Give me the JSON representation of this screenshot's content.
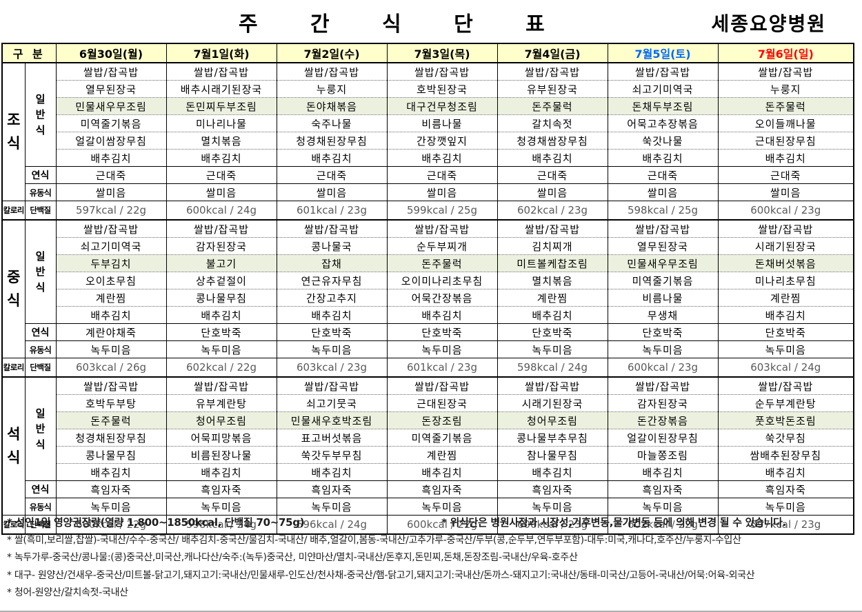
{
  "header": {
    "title": "주 간 식 단 표",
    "hospital": "세종요양병원"
  },
  "table": {
    "corner_label": "구  분",
    "highlight_row_index": 2,
    "colors": {
      "header_bg": "#FFFFCC",
      "highlight_bg": "#EBF1DE",
      "weekday_text": "#000000",
      "saturday_text": "#0066FF",
      "sunday_text": "#FF0000",
      "nutrition_text": "#595959"
    },
    "day_columns": [
      {
        "label": "6월30일(월)",
        "color": "#000000"
      },
      {
        "label": "7월1일(화)",
        "color": "#000000"
      },
      {
        "label": "7월2일(수)",
        "color": "#000000"
      },
      {
        "label": "7월3일(목)",
        "color": "#000000"
      },
      {
        "label": "7월4일(금)",
        "color": "#000000"
      },
      {
        "label": "7월5일(토)",
        "color": "#0066FF"
      },
      {
        "label": "7월6일(일)",
        "color": "#FF0000"
      }
    ],
    "row_labels": {
      "general": "일반식",
      "soft": "연식",
      "liquid": "유동식",
      "calorie": "칼로리",
      "protein": "단백질"
    },
    "sections": [
      {
        "name": "조식",
        "days": [
          {
            "menu": [
              "쌀밥/잡곡밥",
              "열무된장국",
              "민물새우무조림",
              "미역줄기볶음",
              "얼갈이쌈장무침",
              "배추김치"
            ],
            "soft": "근대죽",
            "liquid": "쌀미음",
            "nutrition": "597kcal / 22g"
          },
          {
            "menu": [
              "쌀밥/잡곡밥",
              "배추시래기된장국",
              "돈민찌두부조림",
              "미나리나물",
              "멸치볶음",
              "배추김치"
            ],
            "soft": "근대죽",
            "liquid": "쌀미음",
            "nutrition": "600kcal / 24g"
          },
          {
            "menu": [
              "쌀밥/잡곡밥",
              "누룽지",
              "돈야채볶음",
              "숙주나물",
              "청경채된장무침",
              "배추김치"
            ],
            "soft": "근대죽",
            "liquid": "쌀미음",
            "nutrition": "601kcal / 23g"
          },
          {
            "menu": [
              "쌀밥/잡곡밥",
              "호박된장국",
              "대구건무청조림",
              "비름나물",
              "간장깻잎지",
              "배추김치"
            ],
            "soft": "근대죽",
            "liquid": "쌀미음",
            "nutrition": "599kcal / 25g"
          },
          {
            "menu": [
              "쌀밥/잡곡밥",
              "유부된장국",
              "돈주물럭",
              "갈치속젓",
              "청경채쌈장무침",
              "배추김치"
            ],
            "soft": "근대죽",
            "liquid": "쌀미음",
            "nutrition": "602kcal / 23g"
          },
          {
            "menu": [
              "쌀밥/잡곡밥",
              "쇠고기미역국",
              "돈채두부조림",
              "어묵고추장볶음",
              "쑥갓나물",
              "배추김치"
            ],
            "soft": "근대죽",
            "liquid": "쌀미음",
            "nutrition": "598kcal / 25g"
          },
          {
            "menu": [
              "쌀밥/잡곡밥",
              "누룽지",
              "돈주물럭",
              "오이들깨나물",
              "근대된장무침",
              "배추김치"
            ],
            "soft": "근대죽",
            "liquid": "쌀미음",
            "nutrition": "600kcal / 23g"
          }
        ]
      },
      {
        "name": "중식",
        "days": [
          {
            "menu": [
              "쌀밥/잡곡밥",
              "쇠고기미역국",
              "두부김치",
              "오이초무침",
              "계란찜",
              "배추김치"
            ],
            "soft": "계란야채죽",
            "liquid": "녹두미음",
            "nutrition": "603kcal / 26g"
          },
          {
            "menu": [
              "쌀밥/잡곡밥",
              "감자된장국",
              "불고기",
              "상추겉절이",
              "콩나물무침",
              "배추김치"
            ],
            "soft": "단호박죽",
            "liquid": "녹두미음",
            "nutrition": "602kcal / 22g"
          },
          {
            "menu": [
              "쌀밥/잡곡밥",
              "콩나물국",
              "잡채",
              "연근유자무침",
              "간장고추지",
              "배추김치"
            ],
            "soft": "단호박죽",
            "liquid": "녹두미음",
            "nutrition": "603kcal / 23g"
          },
          {
            "menu": [
              "쌀밥/잡곡밥",
              "순두부찌개",
              "돈주물럭",
              "오이미나리초무침",
              "어묵간장볶음",
              "배추김치"
            ],
            "soft": "단호박죽",
            "liquid": "녹두미음",
            "nutrition": "601kcal / 23g"
          },
          {
            "menu": [
              "쌀밥/잡곡밥",
              "김치찌개",
              "미트볼케찹조림",
              "멸치볶음",
              "계란찜",
              "배추김치"
            ],
            "soft": "단호박죽",
            "liquid": "녹두미음",
            "nutrition": "598kcal / 24g"
          },
          {
            "menu": [
              "쌀밥/잡곡밥",
              "열무된장국",
              "민물새우무조림",
              "미역줄기볶음",
              "비름나물",
              "무생채"
            ],
            "soft": "단호박죽",
            "liquid": "녹두미음",
            "nutrition": "600kcal / 23g"
          },
          {
            "menu": [
              "쌀밥/잡곡밥",
              "시래기된장국",
              "돈채버섯볶음",
              "미나리초무침",
              "계란찜",
              "배추김치"
            ],
            "soft": "단호박죽",
            "liquid": "녹두미음",
            "nutrition": "603kcal / 24g"
          }
        ]
      },
      {
        "name": "석식",
        "days": [
          {
            "menu": [
              "쌀밥/잡곡밥",
              "호박두부탕",
              "돈주물럭",
              "청경채된장무침",
              "콩나물무침",
              "배추김치"
            ],
            "soft": "흑임자죽",
            "liquid": "녹두미음",
            "nutrition": "600kcal / 22g"
          },
          {
            "menu": [
              "쌀밥/잡곡밥",
              "유부계란탕",
              "청어무조림",
              "어묵피망볶음",
              "비름된장나물",
              "배추김치"
            ],
            "soft": "흑임자죽",
            "liquid": "녹두미음",
            "nutrition": "598kcal / 24g"
          },
          {
            "menu": [
              "쌀밥/잡곡밥",
              "쇠고기뭇국",
              "민물새우호박조림",
              "표고버섯볶음",
              "쑥갓두부무침",
              "배추김치"
            ],
            "soft": "흑임자죽",
            "liquid": "녹두미음",
            "nutrition": "596kcal / 24g"
          },
          {
            "menu": [
              "쌀밥/잡곡밥",
              "근대된장국",
              "돈장조림",
              "미역줄기볶음",
              "계란찜",
              "배추김치"
            ],
            "soft": "흑임자죽",
            "liquid": "녹두미음",
            "nutrition": "600kcal / 22g"
          },
          {
            "menu": [
              "쌀밥/잡곡밥",
              "시래기된장국",
              "청어무조림",
              "콩나물부추무침",
              "참나물무침",
              "배추김치"
            ],
            "soft": "흑임자죽",
            "liquid": "녹두미음",
            "nutrition": "600kcal / 23g"
          },
          {
            "menu": [
              "쌀밥/잡곡밥",
              "감자된장국",
              "돈간장볶음",
              "얼갈이된장무침",
              "마늘쫑조림",
              "배추김치"
            ],
            "soft": "흑임자죽",
            "liquid": "녹두미음",
            "nutrition": "602kcal / 22g"
          },
          {
            "menu": [
              "쌀밥/잡곡밥",
              "순두부계란탕",
              "풋호박돈조림",
              "쑥갓무침",
              "쌈배추된장무침",
              "배추김치"
            ],
            "soft": "흑임자죽",
            "liquid": "녹두미음",
            "nutrition": "597kcal / 23g"
          }
        ]
      }
    ]
  },
  "notes": {
    "recommended": "* 성인1일 영양권장량(열량 1,800~1850kcal, 단백질 70~75g)",
    "disclaimer": "* 위식단은 병원사정과 시장성,기후변동,물가변동 등에 의해 변경 될 수 있습니다.",
    "origin1": "* 쌀(흑미,보리쌀,찹쌀)-국내산/수수-중국산/ 배추김치-중국산/물김치-국내산/ 배추,얼갈이,봄동-국내산/고추가루-중국산/두부(콩,순두부,연두부포함)-대두:미국,캐나다,호주산/누룽지-수입산",
    "origin2": "* 녹두가루-중국산/콩나물:(콩)중국산,미국산,캐나다산/숙주:(녹두)중국산, 미얀마산/멸치-국내산/돈후지,돈민찌,돈채,돈장조림-국내산/우육-호주산",
    "origin3": "* 대구- 원양산/건새우-중국산/미트볼-닭고기,돼지고기:국내산/민물새루-인도산/천사채-중국산/햄-닭고기,돼지고기:국내산/돈까스-돼지고기:국내산/동태-미국산/고등어-국내산/어묵:어육-외국산",
    "origin4": "* 청어-원양산/갈치속젓-국내산"
  }
}
